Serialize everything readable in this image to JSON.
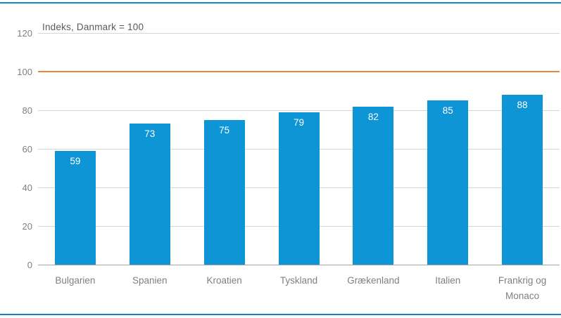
{
  "frame": {
    "border_color": "#0e86c8"
  },
  "chart_data": {
    "type": "bar",
    "title": "Indeks, Danmark = 100",
    "categories": [
      "Bulgarien",
      "Spanien",
      "Kroatien",
      "Tyskland",
      "Grækenland",
      "Italien",
      "Frankrig og Monaco"
    ],
    "values": [
      59,
      73,
      75,
      79,
      82,
      85,
      88
    ],
    "xlabel": "",
    "ylabel": "",
    "ylim": [
      0,
      120
    ],
    "yticks": [
      0,
      20,
      40,
      60,
      80,
      100,
      120
    ],
    "grid": true,
    "legend": "none",
    "reference_line": {
      "value": 100,
      "color": "#e8873d"
    },
    "colors": {
      "bar": "#0e95d5",
      "value_label": "#ffffff",
      "grid": "#d6d6d6",
      "axis": "#a6a6a6",
      "tick_label": "#808080",
      "category_label": "#7f7f7f",
      "title": "#595959"
    }
  }
}
